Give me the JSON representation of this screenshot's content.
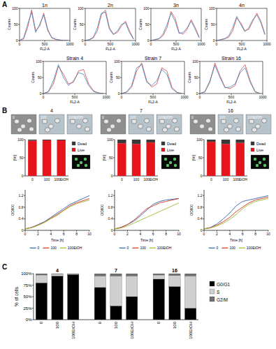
{
  "panel_labels": [
    "A",
    "B",
    "C"
  ],
  "micrographs": {
    "labels": [
      "0",
      "100",
      "100EtOH"
    ]
  },
  "chart_data": [
    {
      "type": "line",
      "title": "1n",
      "x_label": "FL2-A",
      "y_label": "Counts",
      "x": [
        0,
        80,
        160,
        240,
        320,
        400,
        480,
        560,
        640,
        720,
        800,
        880,
        960
      ],
      "xlim": [
        0,
        1000
      ],
      "xticks": [
        0,
        500,
        1000
      ],
      "ylim": [
        0,
        100
      ],
      "yticks": [
        0,
        50,
        100
      ],
      "series": [
        {
          "color": "#d62728",
          "values": [
            0,
            5,
            40,
            95,
            30,
            45,
            85,
            35,
            8,
            3,
            1,
            0,
            0
          ]
        },
        {
          "color": "#1f77b4",
          "values": [
            0,
            8,
            50,
            88,
            25,
            50,
            80,
            30,
            10,
            4,
            2,
            0,
            0
          ]
        }
      ]
    },
    {
      "type": "line",
      "title": "2n",
      "x_label": "FL2-A",
      "y_label": "Counts",
      "x": [
        0,
        80,
        160,
        240,
        320,
        400,
        480,
        560,
        640,
        720,
        800,
        880,
        960
      ],
      "xlim": [
        0,
        1000
      ],
      "xticks": [
        0,
        500,
        1000
      ],
      "ylim": [
        0,
        100
      ],
      "yticks": [
        0,
        50,
        100
      ],
      "series": [
        {
          "color": "#d62728",
          "values": [
            0,
            2,
            8,
            30,
            80,
            95,
            40,
            20,
            25,
            45,
            60,
            30,
            5
          ]
        },
        {
          "color": "#1f77b4",
          "values": [
            0,
            3,
            10,
            40,
            85,
            88,
            35,
            18,
            30,
            50,
            55,
            25,
            4
          ]
        }
      ]
    },
    {
      "type": "line",
      "title": "3n",
      "x_label": "FL2-A",
      "y_label": "Counts",
      "x": [
        0,
        80,
        160,
        240,
        320,
        400,
        480,
        560,
        640,
        720,
        800,
        880,
        960
      ],
      "xlim": [
        0,
        1000
      ],
      "xticks": [
        0,
        500,
        1000
      ],
      "ylim": [
        0,
        100
      ],
      "yticks": [
        0,
        50,
        100
      ],
      "series": [
        {
          "color": "#d62728",
          "values": [
            0,
            2,
            5,
            15,
            40,
            90,
            70,
            25,
            20,
            35,
            65,
            40,
            10
          ]
        },
        {
          "color": "#1f77b4",
          "values": [
            0,
            3,
            6,
            20,
            50,
            85,
            60,
            22,
            25,
            40,
            60,
            35,
            8
          ]
        }
      ]
    },
    {
      "type": "line",
      "title": "4n",
      "x_label": "FL2-A",
      "y_label": "Counts",
      "x": [
        0,
        80,
        160,
        240,
        320,
        400,
        480,
        560,
        640,
        720,
        800,
        880,
        960
      ],
      "xlim": [
        0,
        1000
      ],
      "xticks": [
        0,
        500,
        1000
      ],
      "ylim": [
        0,
        100
      ],
      "yticks": [
        0,
        50,
        100
      ],
      "series": [
        {
          "color": "#d62728",
          "values": [
            0,
            2,
            5,
            10,
            30,
            70,
            55,
            30,
            35,
            60,
            85,
            60,
            20
          ]
        },
        {
          "color": "#1f77b4",
          "values": [
            0,
            3,
            6,
            14,
            40,
            75,
            50,
            28,
            40,
            65,
            80,
            55,
            18
          ]
        }
      ]
    },
    {
      "type": "line",
      "title": "Strain 4",
      "x_label": "FL2-A",
      "y_label": "Counts",
      "x": [
        0,
        80,
        160,
        240,
        320,
        400,
        480,
        560,
        640,
        720,
        800,
        880,
        960
      ],
      "xlim": [
        0,
        1000
      ],
      "xticks": [
        0,
        500,
        1000
      ],
      "ylim": [
        0,
        100
      ],
      "yticks": [
        0,
        50,
        100
      ],
      "series": [
        {
          "color": "#d62728",
          "values": [
            0,
            5,
            30,
            85,
            60,
            30,
            35,
            70,
            75,
            30,
            8,
            2,
            0
          ]
        },
        {
          "color": "#1f77b4",
          "values": [
            0,
            6,
            40,
            90,
            50,
            25,
            40,
            65,
            60,
            25,
            6,
            1,
            0
          ]
        }
      ]
    },
    {
      "type": "line",
      "title": "Strain 7",
      "x_label": "FL2-A",
      "y_label": "Counts",
      "x": [
        0,
        80,
        160,
        240,
        320,
        400,
        480,
        560,
        640,
        720,
        800,
        880,
        960
      ],
      "xlim": [
        0,
        1000
      ],
      "xticks": [
        0,
        500,
        1000
      ],
      "ylim": [
        0,
        100
      ],
      "yticks": [
        0,
        50,
        100
      ],
      "series": [
        {
          "color": "#d62728",
          "values": [
            0,
            4,
            20,
            70,
            95,
            40,
            20,
            30,
            80,
            70,
            20,
            4,
            0
          ]
        },
        {
          "color": "#1f77b4",
          "values": [
            0,
            5,
            25,
            80,
            90,
            35,
            25,
            40,
            75,
            60,
            15,
            3,
            0
          ]
        }
      ]
    },
    {
      "type": "line",
      "title": "Strain 16",
      "x_label": "FL2-A",
      "y_label": "Counts",
      "x": [
        0,
        80,
        160,
        240,
        320,
        400,
        480,
        560,
        640,
        720,
        800,
        880,
        960
      ],
      "xlim": [
        0,
        1000
      ],
      "xticks": [
        0,
        500,
        1000
      ],
      "ylim": [
        0,
        100
      ],
      "yticks": [
        0,
        50,
        100
      ],
      "series": [
        {
          "color": "#d62728",
          "values": [
            0,
            5,
            35,
            95,
            55,
            20,
            15,
            25,
            70,
            90,
            40,
            6,
            0
          ]
        },
        {
          "color": "#1f77b4",
          "values": [
            0,
            6,
            40,
            88,
            50,
            18,
            20,
            30,
            65,
            80,
            35,
            5,
            0
          ]
        }
      ]
    },
    {
      "type": "bar",
      "stacked": true,
      "title": "4",
      "y_label": "[%]",
      "legend": "right",
      "categories": [
        "0",
        "100",
        "100EtOH"
      ],
      "ylim": [
        0,
        100
      ],
      "yticks": [
        0,
        50,
        100
      ],
      "series": [
        {
          "name": "Live",
          "color": "#e8141c",
          "values": [
            97,
            98,
            98
          ]
        },
        {
          "name": "Dead",
          "color": "#3a3a3a",
          "values": [
            3,
            2,
            2
          ]
        }
      ]
    },
    {
      "type": "bar",
      "stacked": true,
      "title": "7",
      "y_label": "[%]",
      "legend": "right",
      "categories": [
        "0",
        "100",
        "100EtOH"
      ],
      "ylim": [
        0,
        100
      ],
      "yticks": [
        0,
        50,
        100
      ],
      "series": [
        {
          "name": "Live",
          "color": "#e8141c",
          "values": [
            90,
            88,
            92
          ]
        },
        {
          "name": "Dead",
          "color": "#3a3a3a",
          "values": [
            10,
            12,
            8
          ]
        }
      ]
    },
    {
      "type": "bar",
      "stacked": true,
      "title": "16",
      "y_label": "[%]",
      "legend": "right",
      "categories": [
        "0",
        "100",
        "100EtOH"
      ],
      "ylim": [
        0,
        100
      ],
      "yticks": [
        0,
        50,
        100
      ],
      "series": [
        {
          "name": "Live",
          "color": "#e8141c",
          "values": [
            94,
            88,
            91
          ]
        },
        {
          "name": "Dead",
          "color": "#3a3a3a",
          "values": [
            6,
            12,
            9
          ]
        }
      ]
    },
    {
      "type": "line",
      "x_label": "Time [h]",
      "y_label": "OD600",
      "legend": "bottom",
      "x": [
        0,
        1,
        2,
        3,
        4,
        5,
        6,
        7,
        8,
        10
      ],
      "xlim": [
        0,
        10
      ],
      "xticks": [
        0,
        2,
        4,
        6,
        8,
        10
      ],
      "ylim": [
        0,
        1.4
      ],
      "yticks": [
        0,
        0.4,
        0.8,
        1.2
      ],
      "series": [
        {
          "name": "0",
          "color": "#2c5fb3",
          "values": [
            0.05,
            0.1,
            0.2,
            0.3,
            0.45,
            0.6,
            0.75,
            0.9,
            1.0,
            1.2
          ]
        },
        {
          "name": "100",
          "color": "#d7301f",
          "values": [
            0.05,
            0.1,
            0.18,
            0.28,
            0.42,
            0.55,
            0.7,
            0.85,
            0.95,
            1.1
          ]
        },
        {
          "name": "100EtOH",
          "color": "#9bbb2a",
          "values": [
            0.05,
            0.09,
            0.17,
            0.27,
            0.4,
            0.52,
            0.68,
            0.82,
            0.92,
            1.05
          ]
        }
      ]
    },
    {
      "type": "line",
      "x_label": "Time [h]",
      "y_label": "OD600",
      "legend": "bottom",
      "x": [
        0,
        1,
        2,
        3,
        4,
        5,
        6,
        7,
        8,
        10
      ],
      "xlim": [
        0,
        10
      ],
      "xticks": [
        0,
        2,
        4,
        6,
        8,
        10
      ],
      "ylim": [
        0,
        1.4
      ],
      "yticks": [
        0,
        0.4,
        0.8,
        1.2
      ],
      "series": [
        {
          "name": "0",
          "color": "#2c5fb3",
          "values": [
            0.05,
            0.1,
            0.2,
            0.32,
            0.5,
            0.7,
            0.9,
            1.0,
            1.05,
            1.1
          ]
        },
        {
          "name": "100",
          "color": "#d7301f",
          "values": [
            0.05,
            0.1,
            0.2,
            0.35,
            0.55,
            0.75,
            0.85,
            0.95,
            1.0,
            1.1
          ]
        },
        {
          "name": "100EtOH",
          "color": "#9bbb2a",
          "values": [
            0.05,
            0.08,
            0.15,
            0.25,
            0.35,
            0.45,
            0.55,
            0.65,
            0.75,
            0.95
          ]
        }
      ]
    },
    {
      "type": "line",
      "x_label": "Time [h]",
      "y_label": "OD600",
      "legend": "bottom",
      "x": [
        0,
        1,
        2,
        3,
        4,
        5,
        6,
        7,
        8,
        10
      ],
      "xlim": [
        0,
        10
      ],
      "xticks": [
        0,
        2,
        4,
        6,
        8,
        10
      ],
      "ylim": [
        0,
        1.4
      ],
      "yticks": [
        0,
        0.4,
        0.8,
        1.2
      ],
      "series": [
        {
          "name": "0",
          "color": "#2c5fb3",
          "values": [
            0.05,
            0.1,
            0.22,
            0.4,
            0.6,
            0.85,
            1.0,
            1.05,
            1.1,
            1.2
          ]
        },
        {
          "name": "100",
          "color": "#d7301f",
          "values": [
            0.05,
            0.09,
            0.18,
            0.3,
            0.45,
            0.65,
            0.8,
            0.95,
            1.05,
            1.15
          ]
        },
        {
          "name": "100EtOH",
          "color": "#9bbb2a",
          "values": [
            0.05,
            0.08,
            0.15,
            0.25,
            0.38,
            0.55,
            0.75,
            0.9,
            1.0,
            1.1
          ]
        }
      ]
    },
    {
      "type": "bar",
      "stacked": true,
      "y_label": "% of cells",
      "legend": "right",
      "groups": [
        "4",
        "7",
        "16"
      ],
      "categories": [
        "0",
        "100",
        "100EtOH",
        "0",
        "100",
        "100EtOH",
        "0",
        "100",
        "100EtOH"
      ],
      "ylim": [
        0,
        100
      ],
      "yticks": [
        {
          "value": 0,
          "label": "0%"
        },
        {
          "value": 25,
          "label": "25%"
        },
        {
          "value": 50,
          "label": "50%"
        },
        {
          "value": 75,
          "label": "75%"
        },
        {
          "value": 100,
          "label": "100%"
        }
      ],
      "series": [
        {
          "name": "G0/G1",
          "color": "#000000",
          "values": [
            80,
            95,
            98,
            70,
            30,
            50,
            88,
            72,
            25
          ]
        },
        {
          "name": "S",
          "color": "#cfcfcf",
          "values": [
            17,
            4,
            1,
            25,
            65,
            45,
            9,
            24,
            70
          ]
        },
        {
          "name": "G2/M",
          "color": "#707070",
          "values": [
            3,
            1,
            1,
            5,
            5,
            5,
            3,
            4,
            5
          ]
        }
      ]
    }
  ]
}
